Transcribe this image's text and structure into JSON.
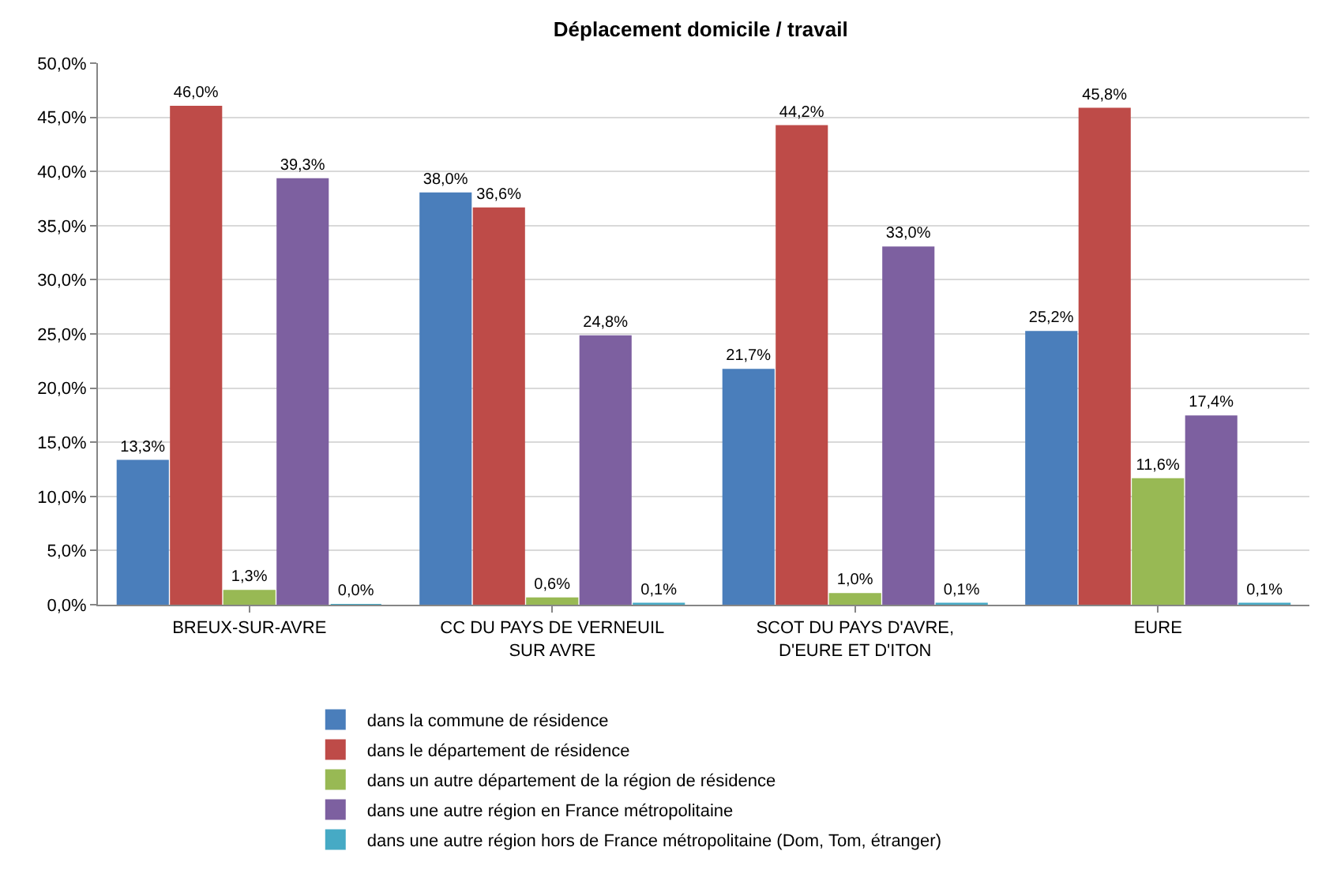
{
  "chart_data": {
    "type": "bar",
    "title": "Déplacement domicile / travail",
    "categories": [
      "BREUX-SUR-AVRE",
      "CC DU PAYS DE VERNEUIL\nSUR AVRE",
      "SCOT DU PAYS D'AVRE,\nD'EURE ET D'ITON",
      "EURE"
    ],
    "series": [
      {
        "name": "dans la commune de résidence",
        "color": "#4a7ebb",
        "values": [
          13.3,
          38.0,
          21.7,
          25.2
        ],
        "value_labels": [
          "13,3%",
          "38,0%",
          "21,7%",
          "25,2%"
        ]
      },
      {
        "name": "dans le département de résidence",
        "color": "#be4b48",
        "values": [
          46.0,
          36.6,
          44.2,
          45.8
        ],
        "value_labels": [
          "46,0%",
          "36,6%",
          "44,2%",
          "45,8%"
        ]
      },
      {
        "name": "dans un autre département de la région de résidence",
        "color": "#98b954",
        "values": [
          1.3,
          0.6,
          1.0,
          11.6
        ],
        "value_labels": [
          "1,3%",
          "0,6%",
          "1,0%",
          "11,6%"
        ]
      },
      {
        "name": "dans une autre région en France métropolitaine",
        "color": "#7d60a0",
        "values": [
          39.3,
          24.8,
          33.0,
          17.4
        ],
        "value_labels": [
          "39,3%",
          "24,8%",
          "33,0%",
          "17,4%"
        ]
      },
      {
        "name": "dans une autre région hors de France métropolitaine (Dom, Tom, étranger)",
        "color": "#46aac5",
        "values": [
          0.0,
          0.1,
          0.1,
          0.1
        ],
        "value_labels": [
          "0,0%",
          "0,1%",
          "0,1%",
          "0,1%"
        ]
      }
    ],
    "ylim": [
      0,
      50
    ],
    "yticks": [
      {
        "value": 0,
        "label": "0,0%"
      },
      {
        "value": 5,
        "label": "5,0%"
      },
      {
        "value": 10,
        "label": "10,0%"
      },
      {
        "value": 15,
        "label": "15,0%"
      },
      {
        "value": 20,
        "label": "20,0%"
      },
      {
        "value": 25,
        "label": "25,0%"
      },
      {
        "value": 30,
        "label": "30,0%"
      },
      {
        "value": 35,
        "label": "35,0%"
      },
      {
        "value": 40,
        "label": "40,0%"
      },
      {
        "value": 45,
        "label": "45,0%"
      },
      {
        "value": 50,
        "label": "50,0%"
      }
    ],
    "grid": "y",
    "legend": "bottom"
  }
}
